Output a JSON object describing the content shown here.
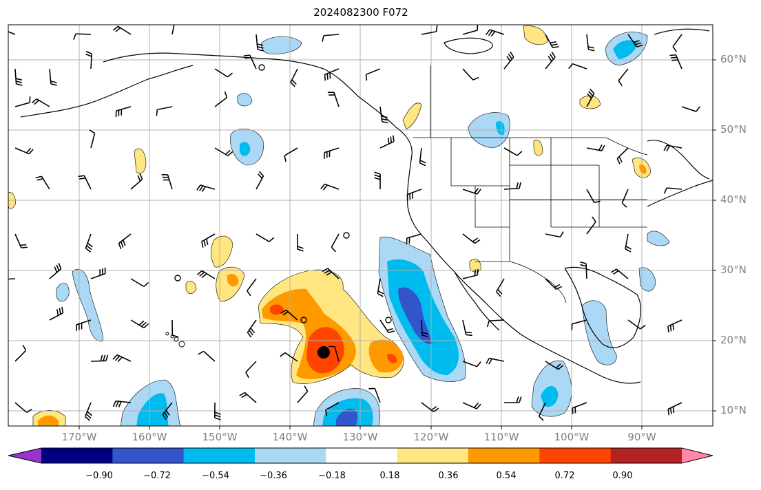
{
  "title": "2024082300 F072",
  "map": {
    "lat_labels": [
      "60°N",
      "50°N",
      "40°N",
      "30°N",
      "20°N",
      "10°N"
    ],
    "lon_labels": [
      "170°W",
      "160°W",
      "150°W",
      "140°W",
      "130°W",
      "120°W",
      "110°W",
      "100°W",
      "90°W"
    ],
    "contour_colors": {
      "neg_090": "#9933cc",
      "neg_072": "#000080",
      "neg_054": "#3355cc",
      "neg_036": "#00bbee",
      "neg_018": "#aad8f5",
      "zero": "#ffffff",
      "pos_018": "#ffe680",
      "pos_036": "#ff9900",
      "pos_054": "#ff4400",
      "pos_072": "#b22222",
      "pos_090": "#ff88aa"
    }
  },
  "colorbar": {
    "ticks": [
      "−0.90",
      "−0.72",
      "−0.54",
      "−0.36",
      "−0.18",
      "0.18",
      "0.36",
      "0.54",
      "0.72",
      "0.90"
    ],
    "colors": [
      "#9933cc",
      "#000080",
      "#3355cc",
      "#00bbee",
      "#aad8f5",
      "#ffffff",
      "#ffe680",
      "#ff9900",
      "#ff4400",
      "#b22222",
      "#ff88aa"
    ]
  }
}
